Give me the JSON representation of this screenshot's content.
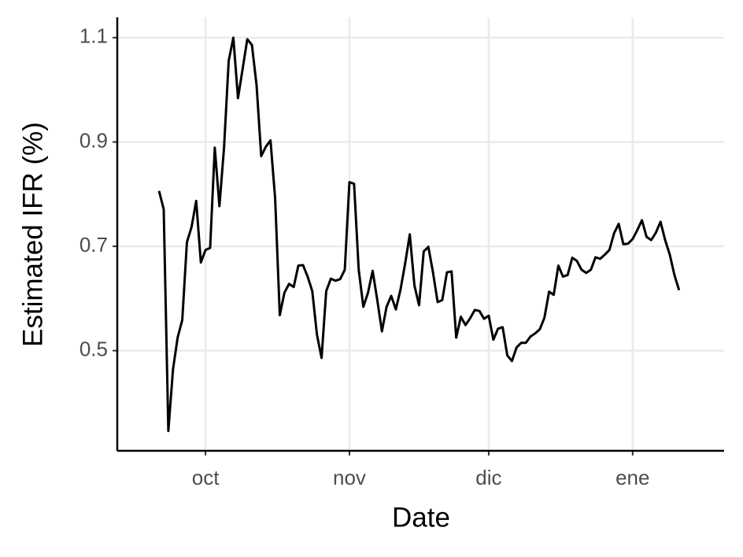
{
  "chart_data": {
    "type": "line",
    "x_label": "Date",
    "y_label": "Estimated IFR (%)",
    "x": [
      -10,
      -9,
      -8,
      -7,
      -6,
      -5,
      -4,
      -3,
      -2,
      -1,
      0,
      1,
      2,
      3,
      4,
      5,
      6,
      7,
      8,
      9,
      10,
      11,
      12,
      13,
      14,
      15,
      16,
      17,
      18,
      19,
      20,
      21,
      22,
      23,
      24,
      25,
      26,
      27,
      28,
      29,
      30,
      31,
      32,
      33,
      34,
      35,
      36,
      37,
      38,
      39,
      40,
      41,
      42,
      43,
      44,
      45,
      46,
      47,
      48,
      49,
      50,
      51,
      52,
      53,
      54,
      55,
      56,
      57,
      58,
      59,
      60,
      61,
      62,
      63,
      64,
      65,
      66,
      67,
      68,
      69,
      70,
      71,
      72,
      73,
      74,
      75,
      76,
      77,
      78,
      79,
      80,
      81,
      82,
      83,
      84,
      85,
      86,
      87,
      88,
      89,
      90,
      91,
      92,
      93,
      94,
      95,
      96,
      97,
      98,
      99,
      100,
      101,
      102
    ],
    "values": [
      0.806,
      0.771,
      0.346,
      0.464,
      0.525,
      0.559,
      0.708,
      0.737,
      0.787,
      0.669,
      0.693,
      0.697,
      0.889,
      0.777,
      0.89,
      1.056,
      1.1,
      0.984,
      1.04,
      1.097,
      1.086,
      1.009,
      0.873,
      0.891,
      0.903,
      0.792,
      0.568,
      0.611,
      0.628,
      0.622,
      0.663,
      0.664,
      0.642,
      0.614,
      0.531,
      0.486,
      0.614,
      0.638,
      0.634,
      0.637,
      0.655,
      0.823,
      0.82,
      0.655,
      0.584,
      0.611,
      0.653,
      0.597,
      0.537,
      0.584,
      0.605,
      0.579,
      0.617,
      0.667,
      0.723,
      0.625,
      0.587,
      0.69,
      0.699,
      0.65,
      0.593,
      0.597,
      0.65,
      0.652,
      0.525,
      0.565,
      0.549,
      0.562,
      0.578,
      0.576,
      0.561,
      0.567,
      0.521,
      0.542,
      0.545,
      0.491,
      0.48,
      0.506,
      0.515,
      0.515,
      0.527,
      0.533,
      0.541,
      0.563,
      0.613,
      0.607,
      0.663,
      0.642,
      0.645,
      0.678,
      0.672,
      0.655,
      0.649,
      0.655,
      0.679,
      0.676,
      0.684,
      0.693,
      0.725,
      0.743,
      0.704,
      0.705,
      0.714,
      0.731,
      0.75,
      0.718,
      0.712,
      0.726,
      0.747,
      0.712,
      0.684,
      0.645,
      0.616
    ],
    "color": "#000000",
    "xlim": [
      -19,
      111.7
    ],
    "xticks": [
      {
        "value": 0,
        "label": "oct"
      },
      {
        "value": 31,
        "label": "nov"
      },
      {
        "value": 61,
        "label": "dic"
      },
      {
        "value": 92,
        "label": "ene"
      }
    ],
    "ylim": [
      0.308,
      1.139
    ],
    "yticks": [
      0.5,
      0.7,
      0.9,
      1.1
    ],
    "grid": true
  }
}
